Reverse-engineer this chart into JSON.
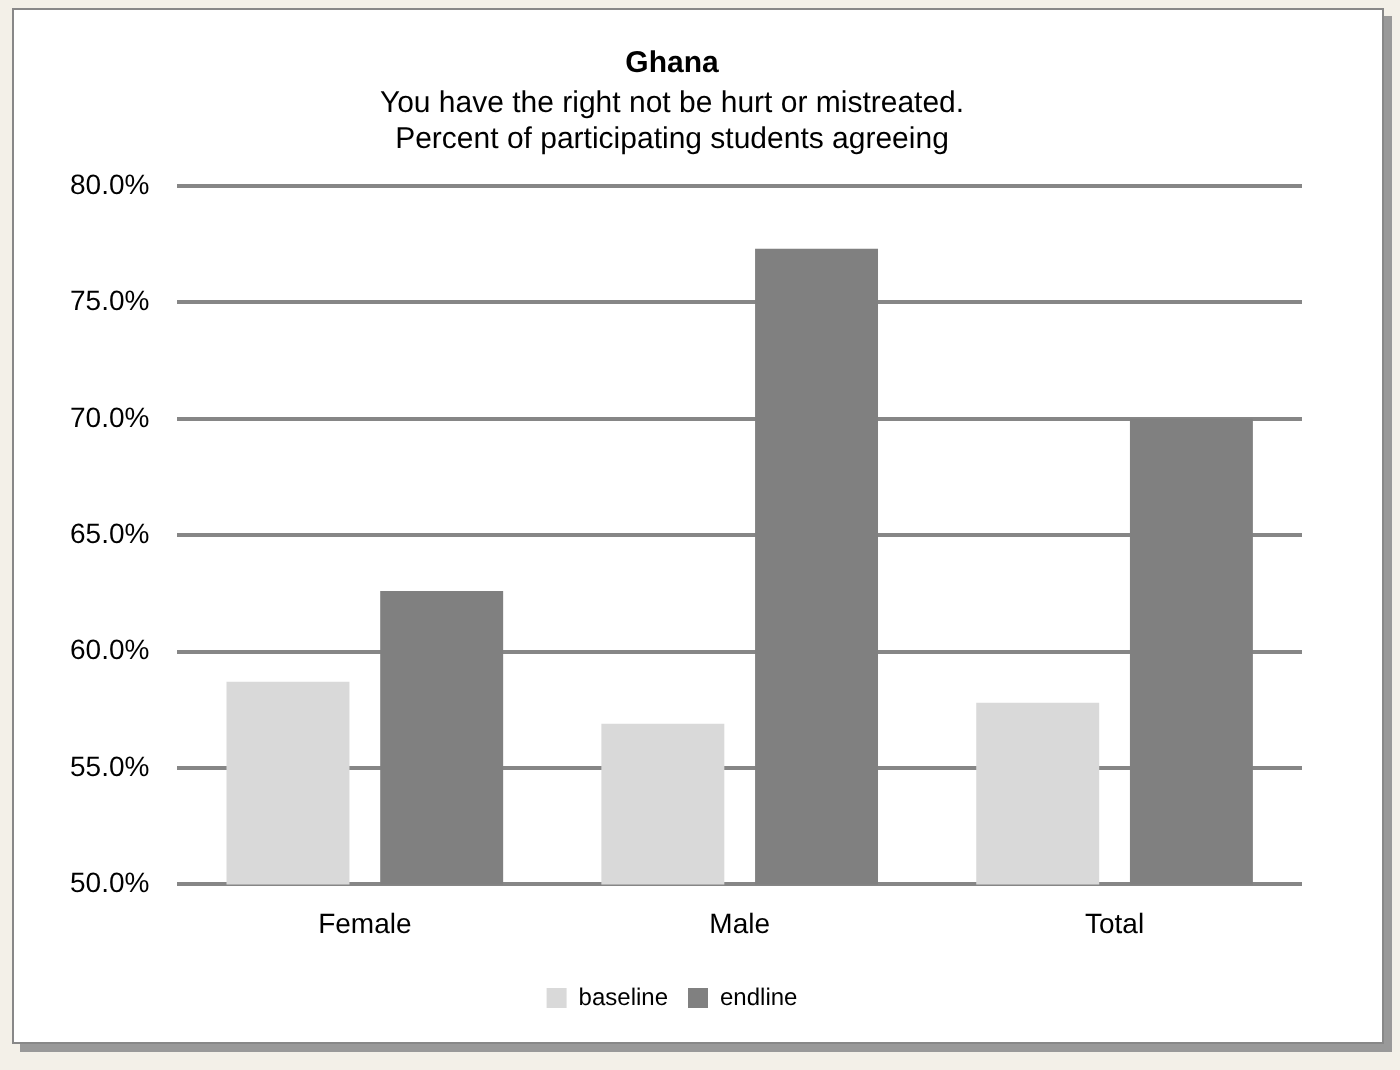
{
  "chart_data": {
    "type": "bar",
    "title": "Ghana",
    "subtitle": "You have the right not be hurt or mistreated.\nPercent of participating students agreeing",
    "categories": [
      "Female",
      "Male",
      "Total"
    ],
    "series": [
      {
        "name": "baseline",
        "color": "#d9d9d9",
        "values": [
          58.7,
          56.9,
          57.8
        ]
      },
      {
        "name": "endline",
        "color": "#808080",
        "values": [
          62.6,
          77.3,
          70.0
        ]
      }
    ],
    "ylim": [
      50,
      80
    ],
    "yticks": [
      {
        "value": 50,
        "label": "50.0%"
      },
      {
        "value": 55,
        "label": "55.0%"
      },
      {
        "value": 60,
        "label": "60.0%"
      },
      {
        "value": 65,
        "label": "65.0%"
      },
      {
        "value": 70,
        "label": "70.0%"
      },
      {
        "value": 75,
        "label": "75.0%"
      },
      {
        "value": 80,
        "label": "80.0%"
      }
    ],
    "grid": "y",
    "legend": "bottom"
  }
}
